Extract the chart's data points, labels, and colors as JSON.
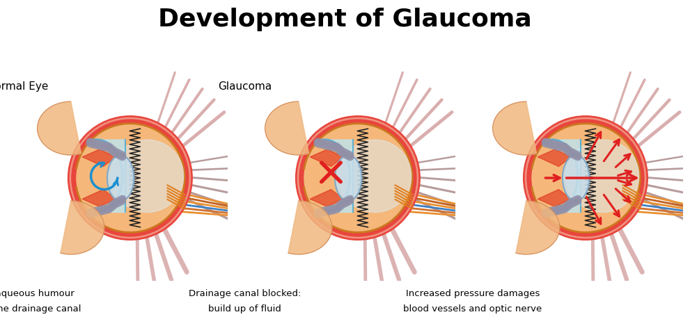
{
  "title": "Development of Glaucoma",
  "title_fontsize": 26,
  "title_fontweight": "bold",
  "bg_color": "#ffffff",
  "panel_labels": [
    "Normal Eye",
    "Glaucoma",
    ""
  ],
  "captions": [
    [
      "Flow of aqueous humour",
      "through the drainage canal"
    ],
    [
      "Drainage canal blocked:",
      "build up of fluid"
    ],
    [
      "Increased pressure damages",
      "blood vessels and optic nerve"
    ]
  ],
  "arrow_types": [
    "flow",
    "blocked",
    "pressure"
  ],
  "eye_fill": "#f5b87a",
  "sclera_color": "#e8453c",
  "sclera_inner": "#f08070",
  "cornea_fill": "#b8e8f8",
  "cornea_outline": "#60b0d0",
  "lens_fill": "#c8dde8",
  "lens_outline": "#80a8c8",
  "gray_struct": "#9090a8",
  "orange_fiber": "#e89030",
  "muscle_color": "#d4a0a0",
  "muscle_dark": "#b08080",
  "flow_arrow_color": "#1a90d0",
  "blocked_color": "#e02020",
  "pressure_color": "#e02020",
  "choroid_color": "#cc7820",
  "drain_red": "#dd2010",
  "eyelid_color": "#f0c090",
  "eyelid_outline": "#d4906070",
  "skin_color": "#f0b880"
}
